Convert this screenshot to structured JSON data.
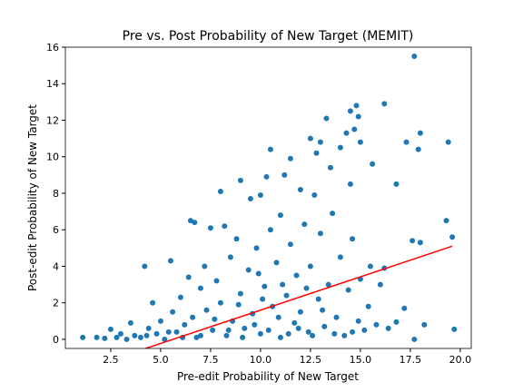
{
  "chart_data": {
    "type": "scatter",
    "title": "Pre vs. Post Probability of New Target (MEMIT)",
    "xlabel": "Pre-edit Probability of New Target",
    "ylabel": "Post-edit Probability of New Target",
    "xlim": [
      0.23,
      20.55
    ],
    "ylim": [
      -0.5,
      16
    ],
    "xticks": [
      2.5,
      {
        "value": 5,
        "label": "5.0"
      },
      7.5,
      {
        "value": 10,
        "label": "10.0"
      },
      12.5,
      {
        "value": 15,
        "label": "15.0"
      },
      17.5,
      {
        "value": 20,
        "label": "20.0"
      }
    ],
    "yticks": [
      0,
      2,
      4,
      6,
      8,
      10,
      12,
      14,
      16
    ],
    "color": "#1f77b4",
    "x": [
      1.1,
      1.8,
      2.2,
      2.5,
      2.8,
      3.0,
      3.3,
      3.5,
      3.7,
      4.0,
      4.2,
      4.4,
      4.6,
      4.8,
      5.0,
      5.2,
      5.5,
      5.6,
      5.8,
      6.0,
      6.2,
      6.4,
      6.5,
      6.7,
      6.6,
      6.8,
      7.0,
      7.2,
      7.3,
      7.5,
      7.6,
      7.8,
      8.0,
      8.0,
      8.2,
      8.3,
      8.5,
      8.6,
      8.8,
      9.0,
      9.0,
      9.2,
      9.4,
      9.5,
      9.6,
      9.8,
      10.0,
      10.0,
      10.2,
      10.3,
      10.5,
      10.5,
      10.6,
      10.8,
      11.0,
      11.0,
      11.2,
      11.3,
      11.5,
      11.5,
      11.7,
      11.8,
      12.0,
      12.0,
      12.2,
      12.4,
      12.5,
      12.5,
      12.7,
      12.8,
      12.9,
      13.0,
      13.0,
      13.2,
      13.3,
      13.4,
      13.5,
      13.6,
      13.8,
      14.0,
      14.0,
      14.2,
      14.3,
      14.4,
      14.5,
      14.5,
      14.6,
      14.7,
      14.8,
      14.9,
      14.9,
      15.0,
      15.0,
      15.2,
      15.5,
      15.6,
      15.8,
      16.0,
      16.2,
      16.2,
      16.4,
      16.8,
      16.8,
      17.2,
      17.3,
      17.6,
      17.7,
      17.7,
      17.9,
      18.0,
      18.0,
      18.2,
      19.3,
      19.4,
      19.6,
      19.7,
      7.0,
      7.7,
      8.4,
      9.1,
      9.7,
      10.4,
      10.9,
      11.4,
      11.9,
      12.6,
      13.1,
      13.7,
      14.6,
      15.4,
      8.9,
      10.1,
      11.1,
      12.3,
      9.9,
      6.1,
      5.4,
      4.3
    ],
    "y": [
      0.1,
      0.1,
      0.05,
      0.55,
      0.1,
      0.3,
      0.0,
      0.9,
      0.2,
      0.1,
      4.0,
      0.6,
      2.0,
      0.3,
      1.0,
      0.0,
      4.3,
      1.5,
      0.4,
      2.3,
      0.8,
      3.4,
      6.5,
      6.4,
      1.2,
      0.1,
      2.8,
      4.0,
      1.6,
      6.1,
      0.5,
      3.2,
      8.1,
      2.0,
      6.2,
      0.2,
      4.5,
      1.0,
      5.5,
      8.7,
      2.5,
      0.6,
      3.8,
      7.7,
      1.4,
      5.0,
      7.9,
      0.3,
      2.9,
      8.9,
      10.4,
      6.0,
      1.8,
      4.2,
      0.1,
      6.8,
      9.0,
      2.4,
      9.9,
      5.2,
      0.9,
      3.5,
      8.2,
      1.5,
      6.3,
      0.4,
      11.0,
      4.0,
      7.9,
      10.2,
      2.2,
      10.8,
      5.8,
      0.7,
      12.1,
      3.0,
      9.4,
      6.9,
      1.2,
      10.5,
      4.5,
      0.2,
      11.3,
      2.7,
      12.5,
      8.5,
      5.5,
      11.5,
      12.8,
      12.2,
      1.0,
      10.8,
      3.3,
      0.5,
      4.0,
      9.6,
      0.8,
      3.0,
      12.9,
      3.9,
      0.6,
      8.5,
      0.95,
      1.7,
      10.8,
      5.4,
      15.5,
      0.0,
      10.4,
      11.3,
      5.3,
      0.8,
      6.5,
      10.8,
      5.6,
      0.55,
      0.2,
      1.1,
      0.5,
      0.1,
      0.8,
      0.5,
      1.2,
      0.3,
      0.6,
      0.2,
      1.6,
      0.3,
      0.4,
      1.8,
      1.9,
      2.2,
      3.0,
      2.8,
      3.6,
      0.1,
      0.4,
      0.2
    ],
    "line": {
      "color": "#ff0000",
      "x": [
        4.25,
        19.6
      ],
      "y": [
        -0.5,
        5.1
      ]
    }
  }
}
